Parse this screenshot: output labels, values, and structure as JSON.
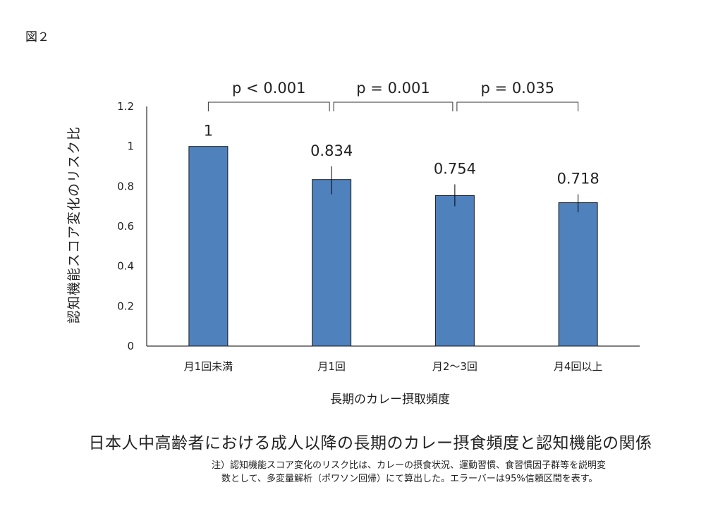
{
  "figure_label": "図２",
  "caption": "日本人中高齢者における成人以降の長期のカレー摂食頻度と認知機能の関係",
  "note": {
    "line1": "注）認知機能スコア変化のリスク比は、カレーの摂食状況、運動習慣、食習慣因子群等を説明変",
    "line2": "数として、多変量解析（ポワソン回帰）にて算出した。エラーバーは95%信頼区間を表す。"
  },
  "colors": {
    "bar": "#4F81BD",
    "bar_outline": "#1a1a1a",
    "axis": "#000000",
    "text": "#222222"
  },
  "chart_data": {
    "type": "bar",
    "title": "",
    "xlabel": "長期のカレー摂取頻度",
    "ylabel": "認知機能スコア変化のリスク比",
    "ylim": [
      0,
      1.2
    ],
    "yticks": [
      0,
      0.2,
      0.4,
      0.6,
      0.8,
      1,
      1.2
    ],
    "ytick_labels": [
      "0",
      "0.2",
      "0.4",
      "0.6",
      "0.8",
      "1",
      "1.2"
    ],
    "categories": [
      "月1回未満",
      "月1回",
      "月2〜3回",
      "月4回以上"
    ],
    "values": [
      1,
      0.834,
      0.754,
      0.718
    ],
    "data_labels": [
      "1",
      "0.834",
      "0.754",
      "0.718"
    ],
    "error_bars": [
      null,
      [
        0.76,
        0.9
      ],
      [
        0.7,
        0.81
      ],
      [
        0.67,
        0.76
      ]
    ],
    "grid": false,
    "legend": "none",
    "comparisons": [
      {
        "from": 0,
        "to": 1,
        "label": "p < 0.001"
      },
      {
        "from": 1,
        "to": 2,
        "label": "p = 0.001"
      },
      {
        "from": 2,
        "to": 3,
        "label": "p = 0.035"
      }
    ]
  }
}
